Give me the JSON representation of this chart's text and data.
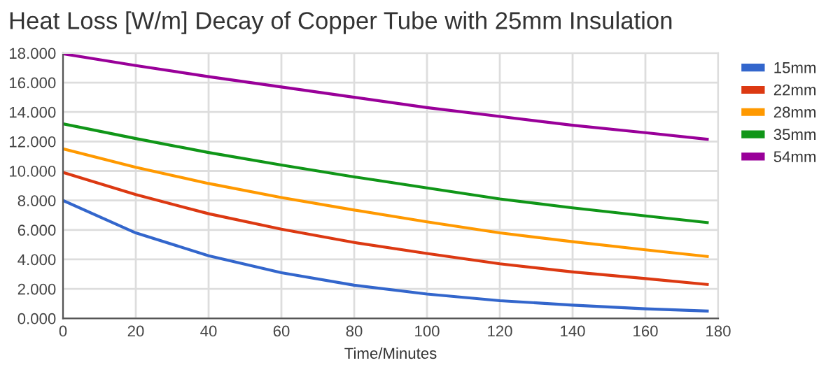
{
  "chart_data": {
    "type": "line",
    "title": "Heat Loss [W/m] Decay of Copper Tube with 25mm Insulation",
    "xlabel": "Time/Minutes",
    "x": [
      0,
      20,
      40,
      60,
      80,
      100,
      120,
      140,
      160,
      177
    ],
    "series": [
      {
        "name": "15mm",
        "color": "#3366cc",
        "values": [
          8.0,
          5.8,
          4.25,
          3.1,
          2.25,
          1.65,
          1.2,
          0.9,
          0.65,
          0.5
        ]
      },
      {
        "name": "22mm",
        "color": "#dc3912",
        "values": [
          9.9,
          8.4,
          7.1,
          6.05,
          5.15,
          4.4,
          3.7,
          3.15,
          2.7,
          2.3
        ]
      },
      {
        "name": "28mm",
        "color": "#ff9900",
        "values": [
          11.5,
          10.25,
          9.15,
          8.2,
          7.35,
          6.55,
          5.8,
          5.2,
          4.65,
          4.2
        ]
      },
      {
        "name": "35mm",
        "color": "#109618",
        "values": [
          13.2,
          12.2,
          11.25,
          10.4,
          9.6,
          8.85,
          8.1,
          7.5,
          6.95,
          6.5
        ]
      },
      {
        "name": "54mm",
        "color": "#990099",
        "values": [
          17.95,
          17.15,
          16.4,
          15.7,
          15.0,
          14.3,
          13.7,
          13.1,
          12.6,
          12.15
        ]
      }
    ],
    "xlim": [
      0,
      180
    ],
    "xticks": [
      0,
      20,
      40,
      60,
      80,
      100,
      120,
      140,
      160,
      180
    ],
    "ylim": [
      0,
      18
    ],
    "yticks": [
      {
        "value": 0,
        "label": "0.000"
      },
      {
        "value": 2,
        "label": "2.000"
      },
      {
        "value": 4,
        "label": "4.000"
      },
      {
        "value": 6,
        "label": "6.000"
      },
      {
        "value": 8,
        "label": "8.000"
      },
      {
        "value": 10,
        "label": "10.000"
      },
      {
        "value": 12,
        "label": "12.000"
      },
      {
        "value": 14,
        "label": "14.000"
      },
      {
        "value": 16,
        "label": "16.000"
      },
      {
        "value": 18,
        "label": "18.000"
      }
    ],
    "grid": true,
    "legend": "right",
    "marker": "none",
    "line_style": "solid"
  }
}
